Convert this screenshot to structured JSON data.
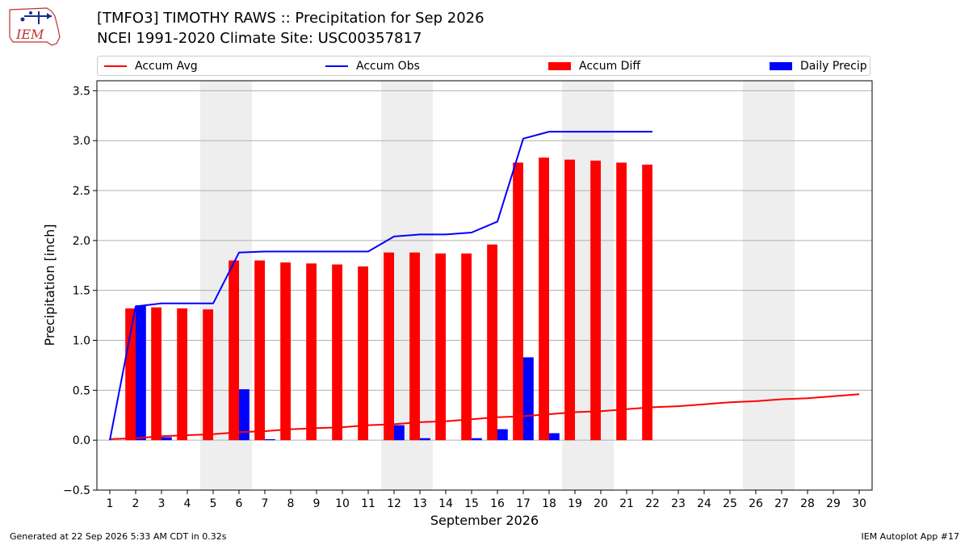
{
  "header": {
    "title_line1": "[TMFO3] TIMOTHY RAWS :: Precipitation for Sep 2026",
    "title_line2": "NCEI 1991-2020 Climate Site: USC00357817"
  },
  "logo": {
    "text": "IEM"
  },
  "legend": {
    "items": [
      {
        "label": "Accum Avg",
        "kind": "line",
        "color": "#ff0000"
      },
      {
        "label": "Accum Obs",
        "kind": "line",
        "color": "#0000ff"
      },
      {
        "label": "Accum Diff",
        "kind": "bar",
        "color": "#ff0000"
      },
      {
        "label": "Daily Precip",
        "kind": "bar",
        "color": "#0000ff"
      }
    ]
  },
  "footer": {
    "left": "Generated at 22 Sep 2026 5:33 AM CDT in 0.32s",
    "right": "IEM Autoplot App #17"
  },
  "chart_data": {
    "type": "bar",
    "xlabel": "September 2026",
    "ylabel": "Precipitation [inch]",
    "ylim": [
      -0.5,
      3.6
    ],
    "xlim": [
      0.5,
      30.5
    ],
    "yticks": [
      -0.5,
      0.0,
      0.5,
      1.0,
      1.5,
      2.0,
      2.5,
      3.0,
      3.5
    ],
    "ytick_labels": [
      "−0.5",
      "0.0",
      "0.5",
      "1.0",
      "1.5",
      "2.0",
      "2.5",
      "3.0",
      "3.5"
    ],
    "x": [
      1,
      2,
      3,
      4,
      5,
      6,
      7,
      8,
      9,
      10,
      11,
      12,
      13,
      14,
      15,
      16,
      17,
      18,
      19,
      20,
      21,
      22,
      23,
      24,
      25,
      26,
      27,
      28,
      29,
      30
    ],
    "x_labels": [
      "1",
      "2",
      "3",
      "4",
      "5",
      "6",
      "7",
      "8",
      "9",
      "10",
      "11",
      "12",
      "13",
      "14",
      "15",
      "16",
      "17",
      "18",
      "19",
      "20",
      "21",
      "22",
      "23",
      "24",
      "25",
      "26",
      "27",
      "28",
      "29",
      "30"
    ],
    "grid": "horizontal",
    "weekend_shading": [
      [
        4.5,
        6.5
      ],
      [
        11.5,
        13.5
      ],
      [
        18.5,
        20.5
      ],
      [
        25.5,
        27.5
      ]
    ],
    "shading_color": "#eeeeee",
    "series": [
      {
        "name": "Accum Avg",
        "type": "line",
        "color": "#ff0000",
        "x": [
          1,
          2,
          3,
          4,
          5,
          6,
          7,
          8,
          9,
          10,
          11,
          12,
          13,
          14,
          15,
          16,
          17,
          18,
          19,
          20,
          21,
          22,
          23,
          24,
          25,
          26,
          27,
          28,
          29,
          30
        ],
        "values": [
          0.01,
          0.02,
          0.04,
          0.05,
          0.06,
          0.08,
          0.09,
          0.11,
          0.12,
          0.13,
          0.15,
          0.16,
          0.18,
          0.19,
          0.21,
          0.23,
          0.24,
          0.26,
          0.28,
          0.29,
          0.31,
          0.33,
          0.34,
          0.36,
          0.38,
          0.39,
          0.41,
          0.42,
          0.44,
          0.46
        ]
      },
      {
        "name": "Accum Obs",
        "type": "line",
        "color": "#0000ff",
        "x": [
          1,
          2,
          3,
          4,
          5,
          6,
          7,
          8,
          9,
          10,
          11,
          12,
          13,
          14,
          15,
          16,
          17,
          18,
          19,
          20,
          21,
          22
        ],
        "values": [
          0.0,
          1.34,
          1.37,
          1.37,
          1.37,
          1.88,
          1.89,
          1.89,
          1.89,
          1.89,
          1.89,
          2.04,
          2.06,
          2.06,
          2.08,
          2.19,
          3.02,
          3.09,
          3.09,
          3.09,
          3.09,
          3.09
        ]
      },
      {
        "name": "Accum Diff",
        "type": "bar",
        "color": "#ff0000",
        "x": [
          2,
          3,
          4,
          5,
          6,
          7,
          8,
          9,
          10,
          11,
          12,
          13,
          14,
          15,
          16,
          17,
          18,
          19,
          20,
          21,
          22
        ],
        "values": [
          1.32,
          1.33,
          1.32,
          1.31,
          1.8,
          1.8,
          1.78,
          1.77,
          1.76,
          1.74,
          1.88,
          1.88,
          1.87,
          1.87,
          1.96,
          2.78,
          2.83,
          2.81,
          2.8,
          2.78,
          2.76
        ]
      },
      {
        "name": "Daily Precip",
        "type": "bar",
        "color": "#0000ff",
        "x": [
          2,
          3,
          6,
          7,
          12,
          13,
          15,
          16,
          17,
          18
        ],
        "values": [
          1.35,
          0.03,
          0.51,
          0.01,
          0.15,
          0.02,
          0.02,
          0.11,
          0.83,
          0.07
        ]
      }
    ]
  }
}
